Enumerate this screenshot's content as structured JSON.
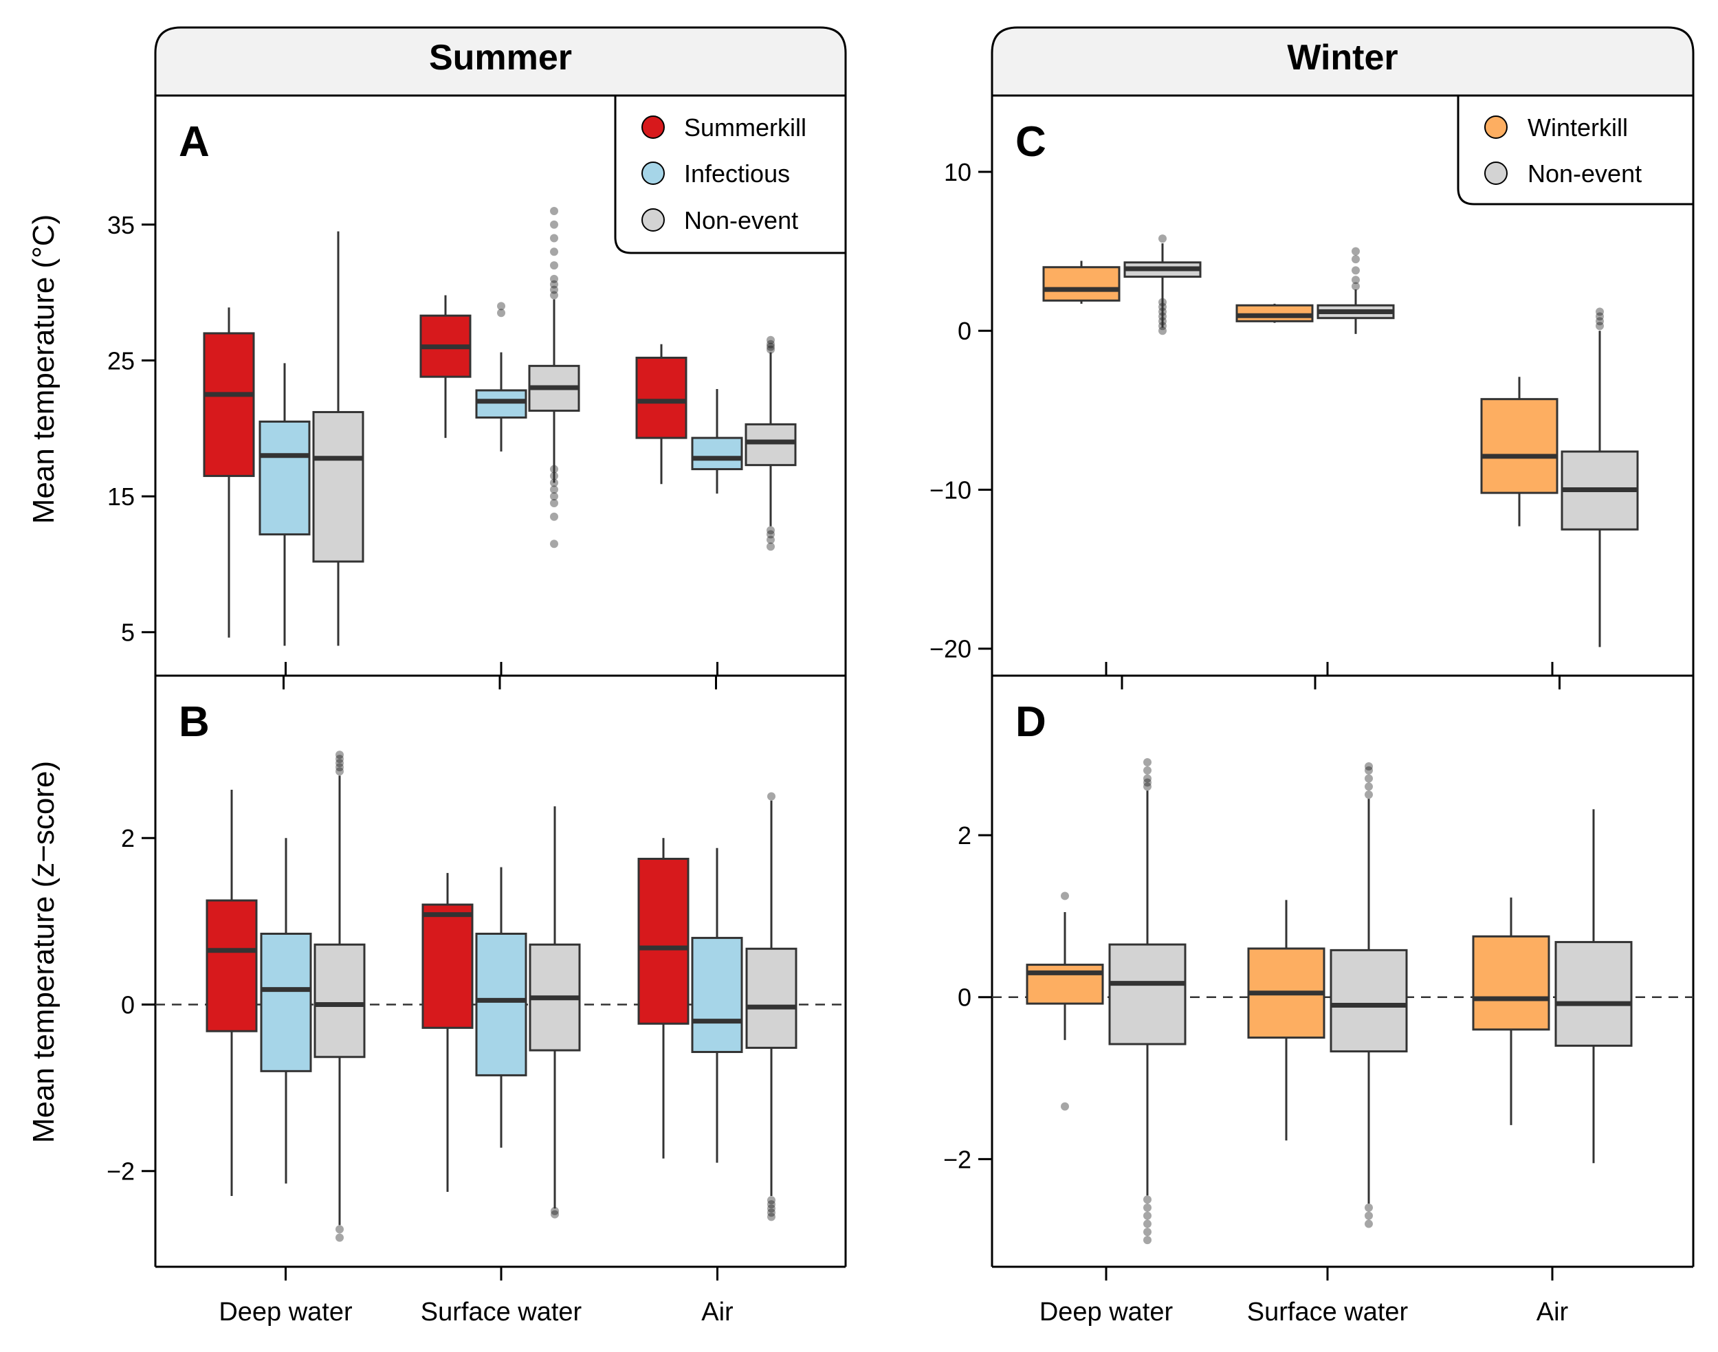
{
  "colors": {
    "summerkill": "#d7191c",
    "infectious": "#a6d5e8",
    "winterkill": "#fdae61",
    "nonevent": "#d3d3d3",
    "strip": "#f2f2f2",
    "line": "#333333"
  },
  "strips": {
    "summer": "Summer",
    "winter": "Winter"
  },
  "axes": {
    "ylabel_top": "Mean temperature (°C)",
    "ylabel_bottom": "Mean temperature (z−score)"
  },
  "legends": {
    "summer": [
      "Summerkill",
      "Infectious",
      "Non-event"
    ],
    "winter": [
      "Winterkill",
      "Non-event"
    ]
  },
  "chart_data": [
    {
      "panel": "A",
      "type": "boxplot",
      "season": "Summer",
      "categories": [
        "Deep water",
        "Surface water",
        "Air"
      ],
      "ylim": [
        1.8,
        44.5
      ],
      "yticks": [
        5,
        15,
        25,
        35
      ],
      "ytick_labels": [
        "5",
        "15",
        "25",
        "35"
      ],
      "legend": "top-right",
      "grid": false,
      "series": [
        {
          "name": "Summerkill",
          "color_key": "summerkill",
          "boxes": [
            {
              "whislo": 4.6,
              "q1": 16.5,
              "median": 22.5,
              "q3": 27.0,
              "whishi": 28.9,
              "outliers": []
            },
            {
              "whislo": 19.3,
              "q1": 23.8,
              "median": 26.0,
              "q3": 28.3,
              "whishi": 29.8,
              "outliers": []
            },
            {
              "whislo": 15.9,
              "q1": 19.3,
              "median": 22.0,
              "q3": 25.2,
              "whishi": 26.2,
              "outliers": []
            }
          ]
        },
        {
          "name": "Infectious",
          "color_key": "infectious",
          "boxes": [
            {
              "whislo": 4.0,
              "q1": 12.2,
              "median": 18.0,
              "q3": 20.5,
              "whishi": 24.8,
              "outliers": []
            },
            {
              "whislo": 18.3,
              "q1": 20.8,
              "median": 22.0,
              "q3": 22.8,
              "whishi": 25.6,
              "outliers": [
                28.5,
                29.0
              ]
            },
            {
              "whislo": 15.2,
              "q1": 17.0,
              "median": 17.8,
              "q3": 19.3,
              "whishi": 22.9,
              "outliers": []
            }
          ]
        },
        {
          "name": "Non-event",
          "color_key": "nonevent",
          "boxes": [
            {
              "whislo": 4.0,
              "q1": 10.2,
              "median": 17.8,
              "q3": 21.2,
              "whishi": 34.5,
              "outliers": []
            },
            {
              "whislo": 16.0,
              "q1": 21.3,
              "median": 23.0,
              "q3": 24.6,
              "whishi": 29.5,
              "outliers": [
                11.5,
                13.5,
                14.5,
                15.0,
                15.5,
                16.0,
                16.5,
                17.0,
                29.8,
                30.2,
                30.6,
                31.0,
                32.0,
                33.0,
                34.0,
                35.0,
                36.0
              ]
            },
            {
              "whislo": 12.8,
              "q1": 17.3,
              "median": 19.0,
              "q3": 20.3,
              "whishi": 25.6,
              "outliers": [
                11.3,
                11.8,
                12.2,
                12.5,
                25.8,
                26.0,
                26.2,
                26.5
              ]
            }
          ]
        }
      ]
    },
    {
      "panel": "B",
      "type": "boxplot",
      "season": "Summer",
      "categories": [
        "Deep water",
        "Surface water",
        "Air"
      ],
      "ylim": [
        -3.15,
        3.95
      ],
      "yticks": [
        -2,
        0,
        2
      ],
      "ytick_labels": [
        "−2",
        "0",
        "2"
      ],
      "reference_line": 0,
      "grid": false,
      "series": [
        {
          "name": "Summerkill",
          "color_key": "summerkill",
          "boxes": [
            {
              "whislo": -2.3,
              "q1": -0.32,
              "median": 0.65,
              "q3": 1.25,
              "whishi": 2.58,
              "outliers": []
            },
            {
              "whislo": -2.25,
              "q1": -0.28,
              "median": 1.08,
              "q3": 1.2,
              "whishi": 1.58,
              "outliers": []
            },
            {
              "whislo": -1.85,
              "q1": -0.23,
              "median": 0.68,
              "q3": 1.75,
              "whishi": 2.0,
              "outliers": []
            }
          ]
        },
        {
          "name": "Infectious",
          "color_key": "infectious",
          "boxes": [
            {
              "whislo": -2.15,
              "q1": -0.8,
              "median": 0.18,
              "q3": 0.85,
              "whishi": 2.0,
              "outliers": []
            },
            {
              "whislo": -1.72,
              "q1": -0.85,
              "median": 0.05,
              "q3": 0.85,
              "whishi": 1.65,
              "outliers": []
            },
            {
              "whislo": -1.9,
              "q1": -0.57,
              "median": -0.2,
              "q3": 0.8,
              "whishi": 1.88,
              "outliers": []
            }
          ]
        },
        {
          "name": "Non-event",
          "color_key": "nonevent",
          "boxes": [
            {
              "whislo": -2.65,
              "q1": -0.63,
              "median": 0.0,
              "q3": 0.72,
              "whishi": 2.75,
              "outliers": [
                -2.8,
                -2.7,
                2.8,
                2.85,
                2.9,
                2.95,
                3.0
              ]
            },
            {
              "whislo": -2.45,
              "q1": -0.55,
              "median": 0.08,
              "q3": 0.72,
              "whishi": 2.38,
              "outliers": [
                -2.48,
                -2.52
              ]
            },
            {
              "whislo": -2.3,
              "q1": -0.52,
              "median": -0.03,
              "q3": 0.67,
              "whishi": 2.45,
              "outliers": [
                -2.35,
                -2.4,
                -2.45,
                -2.5,
                -2.55,
                2.5
              ]
            }
          ]
        }
      ]
    },
    {
      "panel": "C",
      "type": "boxplot",
      "season": "Winter",
      "categories": [
        "Deep water",
        "Surface water",
        "Air"
      ],
      "ylim": [
        -21.7,
        14.8
      ],
      "yticks": [
        -20,
        -10,
        0,
        10
      ],
      "ytick_labels": [
        "−20",
        "−10",
        "0",
        "10"
      ],
      "legend": "top-right",
      "grid": false,
      "series": [
        {
          "name": "Winterkill",
          "color_key": "winterkill",
          "boxes": [
            {
              "whislo": 1.7,
              "q1": 1.9,
              "median": 2.6,
              "q3": 4.0,
              "whishi": 4.4,
              "outliers": []
            },
            {
              "whislo": 0.5,
              "q1": 0.6,
              "median": 0.95,
              "q3": 1.6,
              "whishi": 1.7,
              "outliers": []
            },
            {
              "whislo": -12.3,
              "q1": -10.2,
              "median": -7.9,
              "q3": -4.3,
              "whishi": -2.9,
              "outliers": []
            }
          ]
        },
        {
          "name": "Non-event",
          "color_key": "nonevent",
          "boxes": [
            {
              "whislo": 0.2,
              "q1": 3.4,
              "median": 3.9,
              "q3": 4.3,
              "whishi": 5.5,
              "outliers": [
                0.0,
                0.3,
                0.6,
                0.9,
                1.2,
                1.5,
                1.8,
                5.8
              ]
            },
            {
              "whislo": -0.2,
              "q1": 0.8,
              "median": 1.2,
              "q3": 1.6,
              "whishi": 2.6,
              "outliers": [
                2.8,
                3.2,
                3.8,
                4.5,
                5.0
              ]
            },
            {
              "whislo": -19.9,
              "q1": -12.5,
              "median": -10.0,
              "q3": -7.6,
              "whishi": 0.0,
              "outliers": [
                0.3,
                0.6,
                0.9,
                1.2
              ]
            }
          ]
        }
      ]
    },
    {
      "panel": "D",
      "type": "boxplot",
      "season": "Winter",
      "categories": [
        "Deep water",
        "Surface water",
        "Air"
      ],
      "ylim": [
        -3.33,
        3.97
      ],
      "yticks": [
        -2,
        0,
        2
      ],
      "ytick_labels": [
        "−2",
        "0",
        "2"
      ],
      "reference_line": 0,
      "grid": false,
      "series": [
        {
          "name": "Winterkill",
          "color_key": "winterkill",
          "boxes": [
            {
              "whislo": -0.53,
              "q1": -0.08,
              "median": 0.3,
              "q3": 0.4,
              "whishi": 1.05,
              "outliers": [
                -1.35,
                1.25
              ]
            },
            {
              "whislo": -1.77,
              "q1": -0.5,
              "median": 0.05,
              "q3": 0.6,
              "whishi": 1.2,
              "outliers": []
            },
            {
              "whislo": -1.58,
              "q1": -0.4,
              "median": -0.02,
              "q3": 0.75,
              "whishi": 1.23,
              "outliers": []
            }
          ]
        },
        {
          "name": "Non-event",
          "color_key": "nonevent",
          "boxes": [
            {
              "whislo": -2.45,
              "q1": -0.58,
              "median": 0.17,
              "q3": 0.65,
              "whishi": 2.55,
              "outliers": [
                -2.5,
                -2.6,
                -2.7,
                -2.8,
                -2.9,
                -3.0,
                2.6,
                2.65,
                2.7,
                2.8,
                2.9
              ]
            },
            {
              "whislo": -2.55,
              "q1": -0.67,
              "median": -0.1,
              "q3": 0.58,
              "whishi": 2.45,
              "outliers": [
                -2.6,
                -2.7,
                -2.8,
                2.5,
                2.6,
                2.7,
                2.8,
                2.85
              ]
            },
            {
              "whislo": -2.05,
              "q1": -0.6,
              "median": -0.08,
              "q3": 0.68,
              "whishi": 2.32,
              "outliers": []
            }
          ]
        }
      ]
    }
  ],
  "panel_letters": [
    "A",
    "B",
    "C",
    "D"
  ]
}
